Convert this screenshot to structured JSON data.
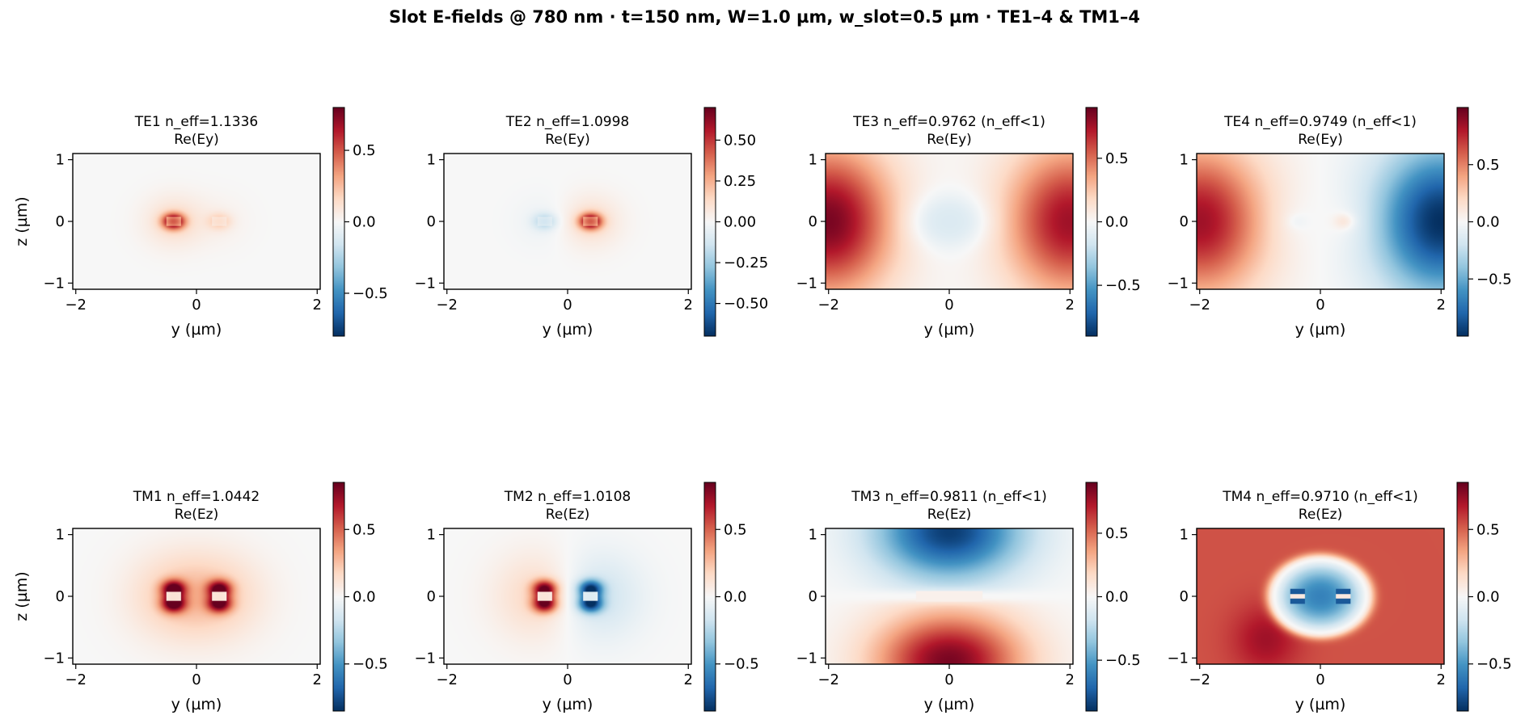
{
  "suptitle": "Slot E-fields @ 780 nm · t=150 nm, W=1.0 µm, w_slot=0.5 µm · TE1–4 & TM1–4",
  "colormap": {
    "name": "RdBu_r",
    "stops": [
      "#053061",
      "#2166ac",
      "#4393c3",
      "#92c5de",
      "#d1e5f0",
      "#f7f7f7",
      "#fddbc7",
      "#f4a582",
      "#d6604d",
      "#b2182b",
      "#67001f"
    ]
  },
  "colors": {
    "axes_background": "#f4f4f4",
    "frame": "#000000"
  },
  "chart_data": [
    {
      "type": "heatmap",
      "mode": "TE1",
      "title": "TE1  n_eff=1.1336",
      "subtitle": "Re(Ey)",
      "field": "Ey",
      "xlabel": "y (µm)",
      "ylabel": "z (µm)",
      "xlim": [
        -2.05,
        2.05
      ],
      "ylim": [
        -1.1,
        1.1
      ],
      "xticks": [
        -2,
        0,
        2
      ],
      "xtick_labels": [
        "−2",
        "0",
        "2"
      ],
      "yticks": [
        -1,
        0,
        1
      ],
      "ytick_labels": [
        "−1",
        "0",
        "1"
      ],
      "clim": [
        -0.8,
        0.8
      ],
      "cbar_ticks": [
        -0.5,
        0,
        0.5
      ],
      "cbar_tick_labels": [
        "−0.5",
        "0.0",
        "0.5"
      ],
      "field_model": {
        "kind": "lobes",
        "sx": 0.13,
        "sz": 0.09,
        "lobes": [
          {
            "y": -0.38,
            "a": 0.95
          },
          {
            "y": 0.38,
            "a": 0.25
          }
        ]
      }
    },
    {
      "type": "heatmap",
      "mode": "TE2",
      "title": "TE2  n_eff=1.0998",
      "subtitle": "Re(Ey)",
      "field": "Ey",
      "xlabel": "y (µm)",
      "ylabel": "",
      "xlim": [
        -2.05,
        2.05
      ],
      "ylim": [
        -1.1,
        1.1
      ],
      "xticks": [
        -2,
        0,
        2
      ],
      "xtick_labels": [
        "−2",
        "0",
        "2"
      ],
      "yticks": [
        -1,
        0,
        1
      ],
      "ytick_labels": [
        "−1",
        "0",
        "1"
      ],
      "clim": [
        -0.7,
        0.7
      ],
      "cbar_ticks": [
        -0.5,
        -0.25,
        0,
        0.25,
        0.5
      ],
      "cbar_tick_labels": [
        "−0.50",
        "−0.25",
        "0.00",
        "0.25",
        "0.50"
      ],
      "field_model": {
        "kind": "lobes",
        "sx": 0.13,
        "sz": 0.09,
        "lobes": [
          {
            "y": -0.38,
            "a": -0.3
          },
          {
            "y": 0.38,
            "a": 0.95
          }
        ]
      }
    },
    {
      "type": "heatmap",
      "mode": "TE3",
      "title": "TE3  n_eff=0.9762  (n_eff<1)",
      "subtitle": "Re(Ey)",
      "field": "Ey",
      "xlabel": "y (µm)",
      "ylabel": "",
      "xlim": [
        -2.05,
        2.05
      ],
      "ylim": [
        -1.1,
        1.1
      ],
      "xticks": [
        -2,
        0,
        2
      ],
      "xtick_labels": [
        "−2",
        "0",
        "2"
      ],
      "yticks": [
        -1,
        0,
        1
      ],
      "ytick_labels": [
        "−1",
        "0",
        "1"
      ],
      "clim": [
        -0.9,
        0.9
      ],
      "cbar_ticks": [
        -0.5,
        0,
        0.5
      ],
      "cbar_tick_labels": [
        "−0.5",
        "0.0",
        "0.5"
      ],
      "field_model": {
        "kind": "te_radiation",
        "left": 0.95,
        "right": 0.85,
        "center": -0.2
      }
    },
    {
      "type": "heatmap",
      "mode": "TE4",
      "title": "TE4  n_eff=0.9749  (n_eff<1)",
      "subtitle": "Re(Ey)",
      "field": "Ey",
      "xlabel": "y (µm)",
      "ylabel": "",
      "xlim": [
        -2.05,
        2.05
      ],
      "ylim": [
        -1.1,
        1.1
      ],
      "xticks": [
        -2,
        0,
        2
      ],
      "xtick_labels": [
        "−2",
        "0",
        "2"
      ],
      "yticks": [
        -1,
        0,
        1
      ],
      "ytick_labels": [
        "−1",
        "0",
        "1"
      ],
      "clim": [
        -1.0,
        1.0
      ],
      "cbar_ticks": [
        -0.5,
        0,
        0.5
      ],
      "cbar_tick_labels": [
        "−0.5",
        "0.0",
        "0.5"
      ],
      "field_model": {
        "kind": "te_radiation",
        "left": 0.85,
        "right": -1.0,
        "center_left": -0.15,
        "center_right": 0.35
      }
    },
    {
      "type": "heatmap",
      "mode": "TM1",
      "title": "TM1  n_eff=1.0442",
      "subtitle": "Re(Ez)",
      "field": "Ez",
      "xlabel": "y (µm)",
      "ylabel": "z (µm)",
      "xlim": [
        -2.05,
        2.05
      ],
      "ylim": [
        -1.1,
        1.1
      ],
      "xticks": [
        -2,
        0,
        2
      ],
      "xtick_labels": [
        "−2",
        "0",
        "2"
      ],
      "yticks": [
        -1,
        0,
        1
      ],
      "ytick_labels": [
        "−1",
        "0",
        "1"
      ],
      "clim": [
        -0.85,
        0.85
      ],
      "cbar_ticks": [
        -0.5,
        0,
        0.5
      ],
      "cbar_tick_labels": [
        "−0.5",
        "0.0",
        "0.5"
      ],
      "field_model": {
        "kind": "tm_lobes",
        "sx": 0.14,
        "sz": 0.1,
        "halo": 0.25,
        "lobes": [
          {
            "y": -0.38,
            "a": 0.9
          },
          {
            "y": 0.38,
            "a": 0.85
          }
        ]
      }
    },
    {
      "type": "heatmap",
      "mode": "TM2",
      "title": "TM2  n_eff=1.0108",
      "subtitle": "Re(Ez)",
      "field": "Ez",
      "xlabel": "y (µm)",
      "ylabel": "",
      "xlim": [
        -2.05,
        2.05
      ],
      "ylim": [
        -1.1,
        1.1
      ],
      "xticks": [
        -2,
        0,
        2
      ],
      "xtick_labels": [
        "−2",
        "0",
        "2"
      ],
      "yticks": [
        -1,
        0,
        1
      ],
      "ytick_labels": [
        "−1",
        "0",
        "1"
      ],
      "clim": [
        -0.85,
        0.85
      ],
      "cbar_ticks": [
        -0.5,
        0,
        0.5
      ],
      "cbar_tick_labels": [
        "−0.5",
        "0.0",
        "0.5"
      ],
      "field_model": {
        "kind": "tm_lobes",
        "sx": 0.14,
        "sz": 0.1,
        "halo": 0.28,
        "lobes": [
          {
            "y": -0.38,
            "a": 0.9
          },
          {
            "y": 0.38,
            "a": -0.9
          }
        ]
      }
    },
    {
      "type": "heatmap",
      "mode": "TM3",
      "title": "TM3  n_eff=0.9811  (n_eff<1)",
      "subtitle": "Re(Ez)",
      "field": "Ez",
      "xlabel": "y (µm)",
      "ylabel": "",
      "xlim": [
        -2.05,
        2.05
      ],
      "ylim": [
        -1.1,
        1.1
      ],
      "xticks": [
        -2,
        0,
        2
      ],
      "xtick_labels": [
        "−2",
        "0",
        "2"
      ],
      "yticks": [
        -1,
        0,
        1
      ],
      "ytick_labels": [
        "−1",
        "0",
        "1"
      ],
      "clim": [
        -0.9,
        0.9
      ],
      "cbar_ticks": [
        -0.5,
        0,
        0.5
      ],
      "cbar_tick_labels": [
        "−0.5",
        "0.0",
        "0.5"
      ],
      "field_model": {
        "kind": "tm_vertical",
        "top": -0.95,
        "bottom": 0.95
      }
    },
    {
      "type": "heatmap",
      "mode": "TM4",
      "title": "TM4  n_eff=0.9710  (n_eff<1)",
      "subtitle": "Re(Ez)",
      "field": "Ez",
      "xlabel": "y (µm)",
      "ylabel": "",
      "xlim": [
        -2.05,
        2.05
      ],
      "ylim": [
        -1.1,
        1.1
      ],
      "xticks": [
        -2,
        0,
        2
      ],
      "xtick_labels": [
        "−2",
        "0",
        "2"
      ],
      "yticks": [
        -1,
        0,
        1
      ],
      "ytick_labels": [
        "−1",
        "0",
        "1"
      ],
      "clim": [
        -0.85,
        0.85
      ],
      "cbar_ticks": [
        -0.5,
        0,
        0.5
      ],
      "cbar_tick_labels": [
        "−0.5",
        "0.0",
        "0.5"
      ],
      "field_model": {
        "kind": "tm_ring",
        "outer": 0.85,
        "inner": -0.75
      }
    }
  ]
}
